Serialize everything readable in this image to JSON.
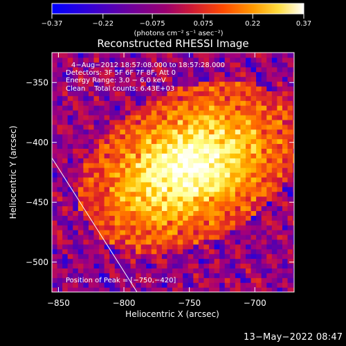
{
  "chart_data": {
    "type": "heatmap",
    "title": "Reconstructed RHESSI Image",
    "xlabel": "Heliocentric X (arcsec)",
    "ylabel": "Heliocentric Y (arcsec)",
    "xlim": [
      -855,
      -670
    ],
    "ylim": [
      -525,
      -325
    ],
    "xticks": [
      -850,
      -800,
      -750,
      -700
    ],
    "yticks": [
      -350,
      -400,
      -450,
      -500
    ],
    "xtick_labels": [
      "−850",
      "−800",
      "−750",
      "−700"
    ],
    "ytick_labels": [
      "−350",
      "−400",
      "−450",
      "−500"
    ],
    "colorbar": {
      "range": [
        -0.37,
        0.37
      ],
      "ticks": [
        -0.37,
        -0.22,
        -0.075,
        0.075,
        0.22,
        0.37
      ],
      "tick_labels": [
        "−0.37",
        "−0.22",
        "−0.075",
        "0.075",
        "0.22",
        "0.37"
      ],
      "unit_label": "(photons cm⁻² s⁻¹ asec⁻²)"
    },
    "annotations": {
      "line1": "4−Aug−2012 18:57:08.000 to 18:57:28.000",
      "line2": "Detectors: 3F 5F 6F 7F 8F, Att 0",
      "line3": "Energy Range: 3.0 − 6.0 keV",
      "line4": "Clean    Total counts: 6.43E+03",
      "peak": "Position of Peak = [−750,−420]"
    },
    "peak_position": [
      -750,
      -420
    ],
    "limb_line": [
      [
        -855,
        -413
      ],
      [
        -790,
        -525
      ]
    ],
    "colormap": [
      "#0000ff",
      "#5d00a8",
      "#a3007a",
      "#d81b2c",
      "#ff6a00",
      "#ffc000",
      "#ffff88",
      "#ffffff"
    ]
  },
  "timestamp": "13−May−2022 08:47"
}
